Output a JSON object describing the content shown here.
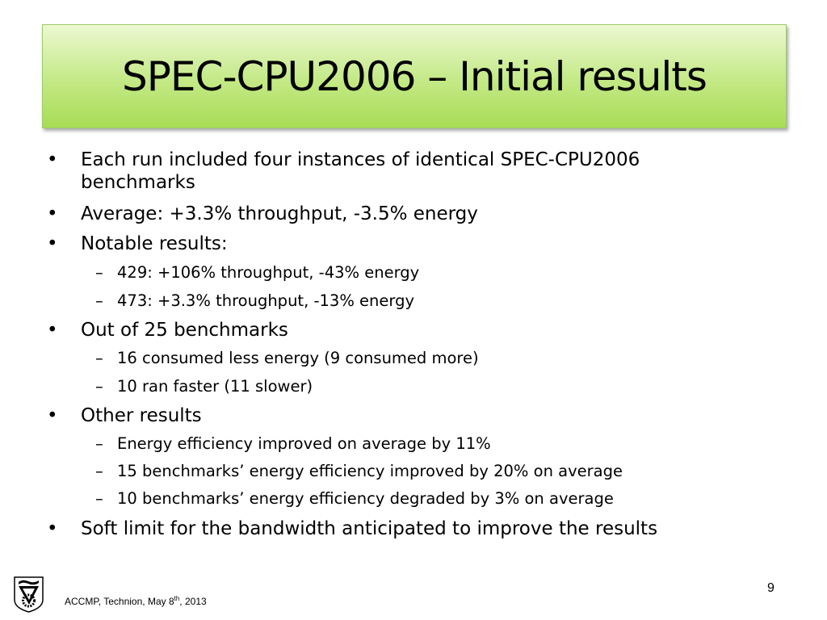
{
  "title": "SPEC-CPU2006 – Initial results",
  "bullets": [
    {
      "text": "Each run included four instances of identical SPEC-CPU2006",
      "cont": "benchmarks"
    },
    {
      "text": "Average: +3.3% throughput, -3.5% energy"
    },
    {
      "text": "Notable results:"
    },
    {
      "text": "429: +106% throughput, -43% energy"
    },
    {
      "text": "473: +3.3% throughput, -13% energy"
    },
    {
      "text": "Out of 25 benchmarks"
    },
    {
      "text": "16 consumed less energy (9 consumed more)"
    },
    {
      "text": "10 ran faster (11 slower)"
    },
    {
      "text": "Other results"
    },
    {
      "text": "Energy efficiency improved on average by 11%"
    },
    {
      "text": "15 benchmarks’ energy efficiency improved by 20% on average"
    },
    {
      "text": "10 benchmarks’ energy efficiency degraded by 3% on average"
    },
    {
      "text": "Soft limit for the bandwidth anticipated to improve the results"
    }
  ],
  "marks": {
    "bullet": "•",
    "dash": "–"
  },
  "footer": {
    "text": "ACCMP, Technion, May 8",
    "sup": "th",
    "tail": ", 2013"
  },
  "page_number": "9"
}
